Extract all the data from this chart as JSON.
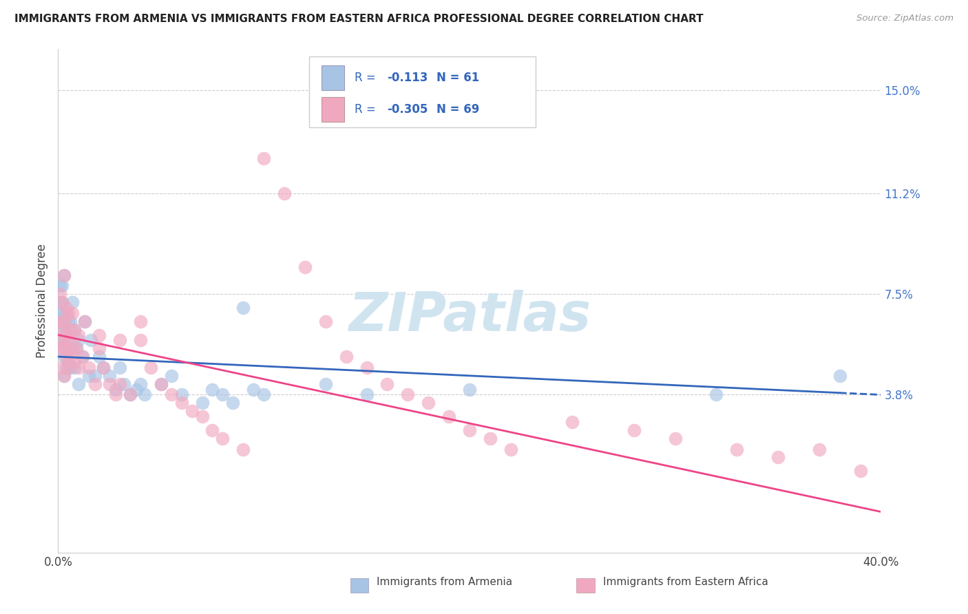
{
  "title": "IMMIGRANTS FROM ARMENIA VS IMMIGRANTS FROM EASTERN AFRICA PROFESSIONAL DEGREE CORRELATION CHART",
  "source": "Source: ZipAtlas.com",
  "ylabel": "Professional Degree",
  "legend_label_1": "Immigrants from Armenia",
  "legend_label_2": "Immigrants from Eastern Africa",
  "r1": -0.113,
  "n1": 61,
  "r2": -0.305,
  "n2": 69,
  "xlim": [
    0.0,
    0.4
  ],
  "ylim": [
    -0.02,
    0.165
  ],
  "yticks": [
    0.038,
    0.075,
    0.112,
    0.15
  ],
  "ytick_labels": [
    "3.8%",
    "7.5%",
    "11.2%",
    "15.0%"
  ],
  "xtick_left_label": "0.0%",
  "xtick_right_label": "40.0%",
  "color_blue": "#a8c4e4",
  "color_pink": "#f0a8c0",
  "line_blue": "#3366bb",
  "line_pink": "#ee4488",
  "legend_text_color": "#3366bb",
  "background": "#ffffff",
  "watermark": "ZIPatlas",
  "watermark_color": "#d0e4f0",
  "scatter_blue_x": [
    0.001,
    0.001,
    0.001,
    0.001,
    0.001,
    0.002,
    0.002,
    0.002,
    0.002,
    0.002,
    0.003,
    0.003,
    0.003,
    0.003,
    0.003,
    0.004,
    0.004,
    0.004,
    0.004,
    0.005,
    0.005,
    0.005,
    0.006,
    0.006,
    0.007,
    0.007,
    0.008,
    0.008,
    0.009,
    0.01,
    0.01,
    0.012,
    0.013,
    0.015,
    0.016,
    0.018,
    0.02,
    0.022,
    0.025,
    0.028,
    0.03,
    0.032,
    0.035,
    0.038,
    0.04,
    0.042,
    0.05,
    0.055,
    0.06,
    0.07,
    0.075,
    0.08,
    0.085,
    0.09,
    0.095,
    0.1,
    0.13,
    0.15,
    0.2,
    0.32,
    0.38
  ],
  "scatter_blue_y": [
    0.058,
    0.065,
    0.068,
    0.072,
    0.078,
    0.055,
    0.062,
    0.068,
    0.072,
    0.078,
    0.045,
    0.052,
    0.058,
    0.065,
    0.082,
    0.048,
    0.055,
    0.062,
    0.068,
    0.05,
    0.058,
    0.065,
    0.048,
    0.065,
    0.055,
    0.072,
    0.048,
    0.062,
    0.055,
    0.042,
    0.058,
    0.052,
    0.065,
    0.045,
    0.058,
    0.045,
    0.052,
    0.048,
    0.045,
    0.04,
    0.048,
    0.042,
    0.038,
    0.04,
    0.042,
    0.038,
    0.042,
    0.045,
    0.038,
    0.035,
    0.04,
    0.038,
    0.035,
    0.07,
    0.04,
    0.038,
    0.042,
    0.038,
    0.04,
    0.038,
    0.045
  ],
  "scatter_pink_x": [
    0.001,
    0.001,
    0.001,
    0.002,
    0.002,
    0.002,
    0.002,
    0.003,
    0.003,
    0.003,
    0.003,
    0.004,
    0.004,
    0.004,
    0.005,
    0.005,
    0.005,
    0.006,
    0.006,
    0.007,
    0.007,
    0.008,
    0.008,
    0.009,
    0.01,
    0.01,
    0.012,
    0.013,
    0.015,
    0.018,
    0.02,
    0.022,
    0.025,
    0.028,
    0.03,
    0.035,
    0.04,
    0.045,
    0.05,
    0.055,
    0.06,
    0.065,
    0.07,
    0.075,
    0.08,
    0.09,
    0.1,
    0.11,
    0.12,
    0.13,
    0.14,
    0.15,
    0.16,
    0.17,
    0.18,
    0.19,
    0.2,
    0.21,
    0.22,
    0.25,
    0.28,
    0.3,
    0.33,
    0.35,
    0.37,
    0.39,
    0.02,
    0.03,
    0.04
  ],
  "scatter_pink_y": [
    0.055,
    0.062,
    0.075,
    0.048,
    0.058,
    0.065,
    0.072,
    0.045,
    0.055,
    0.065,
    0.082,
    0.052,
    0.06,
    0.07,
    0.048,
    0.058,
    0.068,
    0.052,
    0.062,
    0.055,
    0.068,
    0.05,
    0.062,
    0.055,
    0.048,
    0.06,
    0.052,
    0.065,
    0.048,
    0.042,
    0.055,
    0.048,
    0.042,
    0.038,
    0.042,
    0.038,
    0.058,
    0.048,
    0.042,
    0.038,
    0.035,
    0.032,
    0.03,
    0.025,
    0.022,
    0.018,
    0.125,
    0.112,
    0.085,
    0.065,
    0.052,
    0.048,
    0.042,
    0.038,
    0.035,
    0.03,
    0.025,
    0.022,
    0.018,
    0.028,
    0.025,
    0.022,
    0.018,
    0.015,
    0.018,
    0.01,
    0.06,
    0.058,
    0.065
  ]
}
